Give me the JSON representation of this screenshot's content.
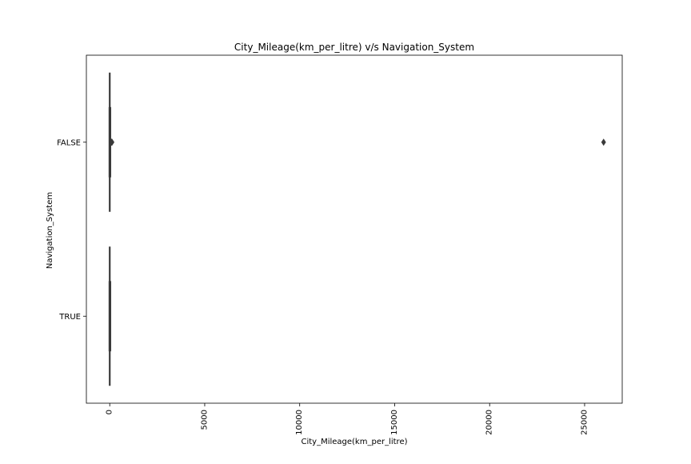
{
  "chart_data": {
    "type": "box",
    "orientation": "horizontal",
    "title": "City_Mileage(km_per_litre) v/s Navigation_System",
    "xlabel": "City_Mileage(km_per_litre)",
    "ylabel": "Navigation_System",
    "xlim": [
      -1230,
      26980
    ],
    "xticks": [
      "0",
      "5000",
      "10000",
      "15000",
      "20000",
      "25000"
    ],
    "xtick_values": [
      0,
      5000,
      10000,
      15000,
      20000,
      25000
    ],
    "categories": [
      "FALSE",
      "TRUE"
    ],
    "grid": false,
    "legend": "none",
    "box_color": "#3a3a3a",
    "boxes": [
      {
        "category": "FALSE",
        "whisker_low": 0,
        "q1": 0,
        "median": 0,
        "q3": 0,
        "whisker_high": 0,
        "outliers": [
          80,
          100,
          120,
          26000
        ]
      },
      {
        "category": "TRUE",
        "whisker_low": 0,
        "q1": 0,
        "median": 0,
        "q3": 0,
        "whisker_high": 0,
        "outliers": []
      }
    ]
  }
}
